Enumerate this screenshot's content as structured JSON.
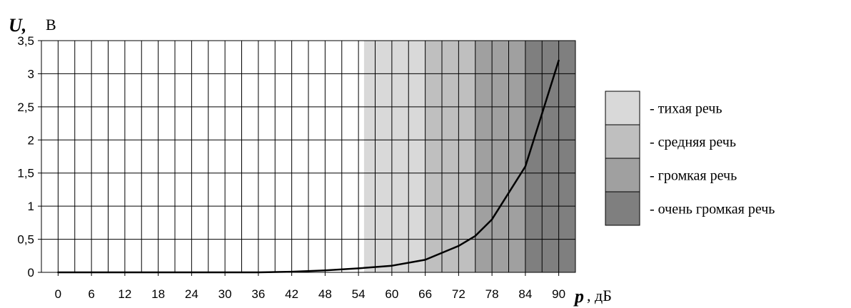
{
  "chart_data": {
    "type": "line",
    "xlabel": "p",
    "xunit": ", дБ",
    "ylabel": "U,",
    "yunit": "В",
    "x_ticks": [
      "0",
      "6",
      "12",
      "18",
      "24",
      "30",
      "36",
      "42",
      "48",
      "54",
      "60",
      "66",
      "72",
      "78",
      "84",
      "90"
    ],
    "y_ticks": [
      "0",
      "0,5",
      "1",
      "1,5",
      "2",
      "2,5",
      "3",
      "3,5"
    ],
    "xlim": [
      -3,
      93
    ],
    "ylim": [
      0,
      3.5
    ],
    "grid": true,
    "legend_position": "right",
    "series": [
      {
        "x": [
          0,
          6,
          12,
          18,
          24,
          30,
          36,
          42,
          48,
          54,
          60,
          66,
          72,
          75,
          78,
          81,
          84,
          87,
          90
        ],
        "y": [
          0,
          0,
          0,
          0,
          0,
          0,
          0,
          0.01,
          0.03,
          0.06,
          0.1,
          0.19,
          0.4,
          0.55,
          0.8,
          1.2,
          1.6,
          2.4,
          3.2
        ]
      }
    ],
    "zones": [
      {
        "label": "- тихая речь",
        "x_from": 55,
        "x_to": 66,
        "color": "#d9d9d9"
      },
      {
        "label": "- средняя речь",
        "x_from": 66,
        "x_to": 75,
        "color": "#bfbfbf"
      },
      {
        "label": "- громкая речь",
        "x_from": 75,
        "x_to": 84,
        "color": "#a0a0a0"
      },
      {
        "label": "- очень громкая речь",
        "x_from": 84,
        "x_to": 93,
        "color": "#7f7f7f"
      }
    ]
  }
}
